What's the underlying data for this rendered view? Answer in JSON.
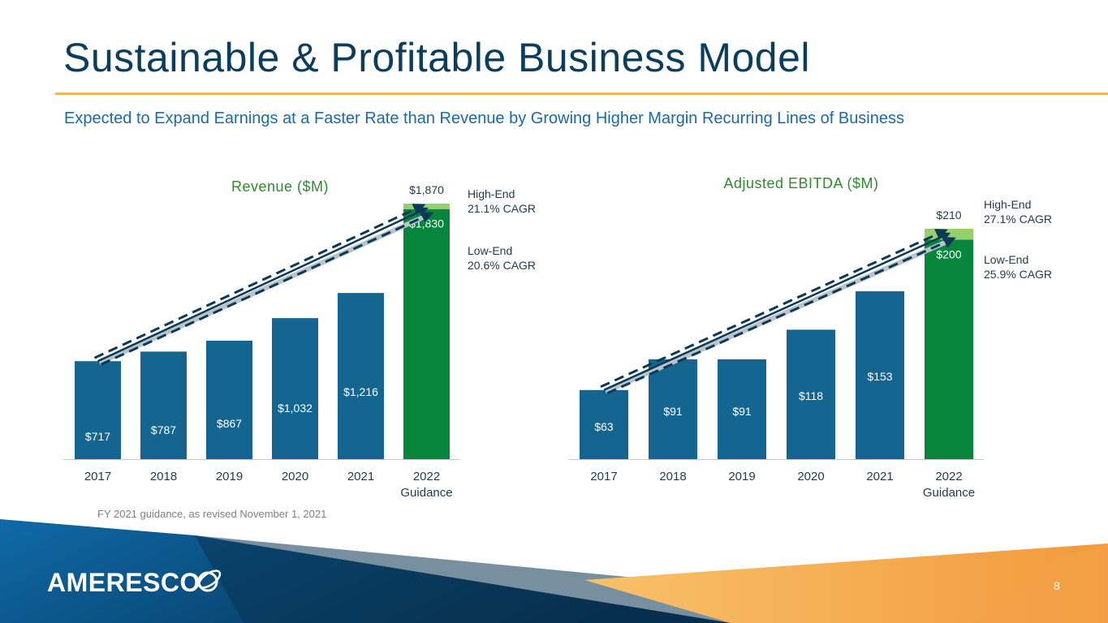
{
  "slide": {
    "title": "Sustainable & Profitable Business Model",
    "subtitle": "Expected to Expand Earnings at a Faster Rate than Revenue by Growing Higher Margin Recurring Lines of Business",
    "footnote": "FY 2021 guidance, as revised November 1, 2021",
    "page_number": "8",
    "logo_text": "AMERESCO"
  },
  "colors": {
    "bar": "#156591",
    "guidance": "#07853c",
    "guidance_high": "#95cf6e",
    "title": "#0b3d5c",
    "chart_title": "#2e8b2e",
    "arrow": "#0c3a56",
    "accent_rule": "#f2b55a"
  },
  "chart_data": [
    {
      "type": "bar",
      "title": "Revenue ($M)",
      "categories": [
        "2017",
        "2018",
        "2019",
        "2020",
        "2021",
        "2022 Guidance"
      ],
      "values": [
        717,
        787,
        867,
        1032,
        1216,
        1830
      ],
      "labels": [
        "$717",
        "$787",
        "$867",
        "$1,032",
        "$1,216",
        "$1,830"
      ],
      "high_end": {
        "value": 1870,
        "label": "$1,870"
      },
      "ylim": [
        0,
        1870
      ],
      "annotations": [
        {
          "title": "High-End",
          "detail": "21.1% CAGR"
        },
        {
          "title": "Low-End",
          "detail": "20.6% CAGR"
        }
      ]
    },
    {
      "type": "bar",
      "title": "Adjusted EBITDA ($M)",
      "categories": [
        "2017",
        "2018",
        "2019",
        "2020",
        "2021",
        "2022 Guidance"
      ],
      "values": [
        63,
        91,
        91,
        118,
        153,
        200
      ],
      "labels": [
        "$63",
        "$91",
        "$91",
        "$118",
        "$153",
        "$200"
      ],
      "high_end": {
        "value": 210,
        "label": "$210"
      },
      "ylim": [
        0,
        210
      ],
      "annotations": [
        {
          "title": "High-End",
          "detail": "27.1% CAGR"
        },
        {
          "title": "Low-End",
          "detail": "25.9% CAGR"
        }
      ]
    }
  ]
}
